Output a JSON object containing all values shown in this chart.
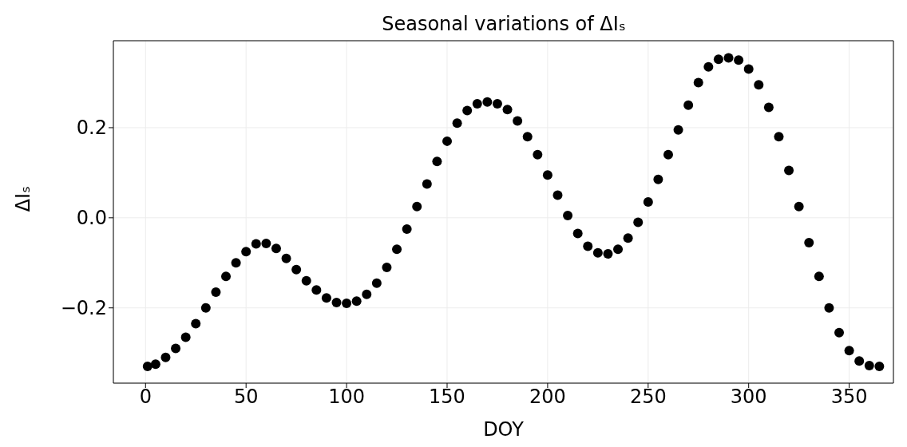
{
  "chart_data": {
    "type": "scatter",
    "title": "Seasonal variations of ΔIₛ",
    "xlabel": "DOY",
    "ylabel": "ΔIₛ",
    "x": [
      1,
      5,
      10,
      15,
      20,
      25,
      30,
      35,
      40,
      45,
      50,
      55,
      60,
      65,
      70,
      75,
      80,
      85,
      90,
      95,
      100,
      105,
      110,
      115,
      120,
      125,
      130,
      135,
      140,
      145,
      150,
      155,
      160,
      165,
      170,
      175,
      180,
      185,
      190,
      195,
      200,
      205,
      210,
      215,
      220,
      225,
      230,
      235,
      240,
      245,
      250,
      255,
      260,
      265,
      270,
      275,
      280,
      285,
      290,
      295,
      300,
      305,
      310,
      315,
      320,
      325,
      330,
      335,
      340,
      345,
      350,
      355,
      360,
      365
    ],
    "series": [
      {
        "color": "#000000",
        "values": [
          -0.33,
          -0.325,
          -0.31,
          -0.29,
          -0.265,
          -0.235,
          -0.2,
          -0.165,
          -0.13,
          -0.1,
          -0.075,
          -0.058,
          -0.057,
          -0.068,
          -0.09,
          -0.115,
          -0.14,
          -0.16,
          -0.178,
          -0.188,
          -0.19,
          -0.185,
          -0.17,
          -0.145,
          -0.11,
          -0.07,
          -0.025,
          0.025,
          0.075,
          0.125,
          0.17,
          0.21,
          0.238,
          0.253,
          0.257,
          0.253,
          0.24,
          0.215,
          0.18,
          0.14,
          0.095,
          0.05,
          0.005,
          -0.035,
          -0.063,
          -0.078,
          -0.08,
          -0.07,
          -0.045,
          -0.01,
          0.035,
          0.085,
          0.14,
          0.195,
          0.25,
          0.3,
          0.335,
          0.352,
          0.355,
          0.35,
          0.33,
          0.295,
          0.245,
          0.18,
          0.105,
          0.025,
          -0.055,
          -0.13,
          -0.2,
          -0.255,
          -0.295,
          -0.318,
          -0.328,
          -0.33
        ]
      }
    ],
    "xlim": [
      -16,
      372
    ],
    "xticks": [
      0,
      50,
      100,
      150,
      200,
      250,
      300,
      350
    ],
    "ylim": [
      -0.367,
      0.393
    ],
    "yticks": [
      {
        "value": -0.2,
        "label": "−0.2"
      },
      {
        "value": 0,
        "label": "0.0"
      },
      0.2
    ],
    "grid": true,
    "marker": "circle"
  }
}
